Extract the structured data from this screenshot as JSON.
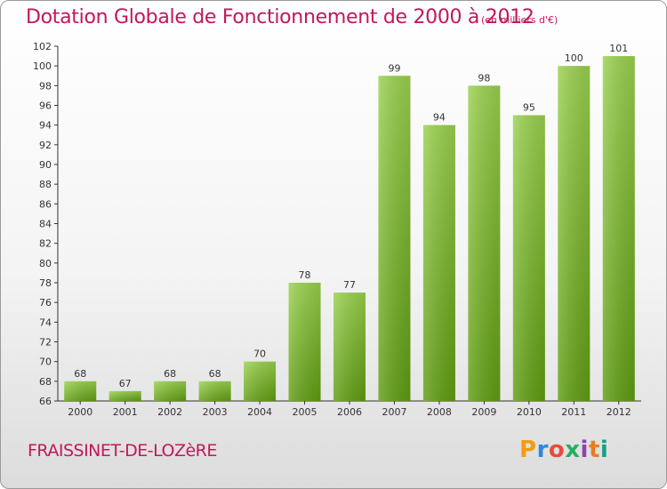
{
  "header": {
    "title": "Dotation Globale de Fonctionnement de 2000 à 2012",
    "subtitle": "(en milliers d'€)"
  },
  "footer": {
    "place": "FRAISSINET-DE-LOZèRE",
    "logo": "Proxiti"
  },
  "colors": {
    "title": "#c1185b",
    "bar_top": "#9ad14e",
    "bar_bottom": "#5f9d12",
    "axis": "#333333"
  },
  "chart_data": {
    "type": "bar",
    "title": "Dotation Globale de Fonctionnement de 2000 à 2012",
    "subtitle": "(en milliers d'€)",
    "categories": [
      "2000",
      "2001",
      "2002",
      "2003",
      "2004",
      "2005",
      "2006",
      "2007",
      "2008",
      "2009",
      "2010",
      "2011",
      "2012"
    ],
    "values": [
      68,
      67,
      68,
      68,
      70,
      78,
      77,
      99,
      94,
      98,
      95,
      100,
      101
    ],
    "ylim": [
      66,
      102
    ],
    "yticks": [
      66,
      68,
      70,
      72,
      74,
      76,
      78,
      80,
      82,
      84,
      86,
      88,
      90,
      92,
      94,
      96,
      98,
      100,
      102
    ],
    "xlabel": "",
    "ylabel": "",
    "grid": false,
    "data_labels": true
  }
}
